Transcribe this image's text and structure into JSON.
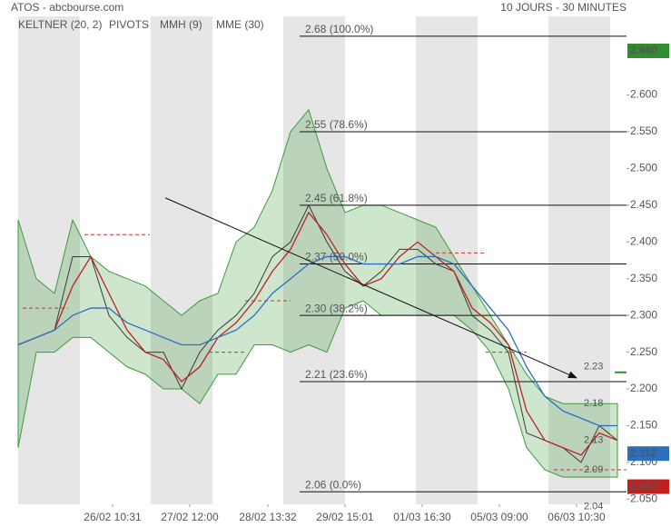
{
  "chart_data": {
    "type": "line",
    "title": "ATOS - abcbourse.com",
    "subtitle": "10 JOURS - 30 MINUTES",
    "x": [
      0,
      1,
      2,
      3,
      4,
      5,
      6,
      7,
      8,
      9,
      10,
      11,
      12,
      13,
      14,
      15,
      16,
      17,
      18,
      19,
      20,
      21,
      22,
      23,
      24,
      25,
      26,
      27,
      28,
      29,
      30,
      31,
      32,
      33
    ],
    "xlim": [
      -0.25,
      33.5
    ],
    "xticks": [
      {
        "value": 5.2,
        "label": "26/02 10:31"
      },
      {
        "value": 9.45,
        "label": "27/02 12:00"
      },
      {
        "value": 13.75,
        "label": "28/02 13:32"
      },
      {
        "value": 18,
        "label": "29/02 15:01"
      },
      {
        "value": 22.25,
        "label": "01/03 16:30"
      },
      {
        "value": 26.5,
        "label": "05/03 09:00"
      },
      {
        "value": 30.75,
        "label": "06/03 10:30"
      }
    ],
    "ylim": [
      2.043,
      2.707
    ],
    "yticks": [
      {
        "value": 2.05,
        "label": "2.050"
      },
      {
        "value": 2.1,
        "label": "2.100"
      },
      {
        "value": 2.15,
        "label": "2.150"
      },
      {
        "value": 2.2,
        "label": "2.200"
      },
      {
        "value": 2.25,
        "label": "2.250"
      },
      {
        "value": 2.3,
        "label": "2.300"
      },
      {
        "value": 2.35,
        "label": "2.350"
      },
      {
        "value": 2.4,
        "label": "2.400"
      },
      {
        "value": 2.45,
        "label": "2.450"
      },
      {
        "value": 2.5,
        "label": "2.500"
      },
      {
        "value": 2.55,
        "label": "2.550"
      },
      {
        "value": 2.6,
        "label": "2.600"
      }
    ],
    "close": {
      "color": "#3a3a3a",
      "values": [
        2.26,
        2.27,
        2.28,
        2.38,
        2.38,
        2.3,
        2.27,
        2.25,
        2.25,
        2.2,
        2.25,
        2.28,
        2.3,
        2.33,
        2.38,
        2.4,
        2.45,
        2.4,
        2.36,
        2.34,
        2.36,
        2.39,
        2.39,
        2.37,
        2.36,
        2.3,
        2.28,
        2.25,
        2.14,
        2.13,
        2.12,
        2.1,
        2.15,
        2.13
      ]
    },
    "keltner": {
      "name": "KELTNER (20, 2)",
      "color": "#3c9a3c",
      "upper": [
        2.43,
        2.35,
        2.33,
        2.43,
        2.38,
        2.36,
        2.35,
        2.34,
        2.32,
        2.3,
        2.32,
        2.33,
        2.4,
        2.42,
        2.47,
        2.55,
        2.58,
        2.5,
        2.44,
        2.45,
        2.45,
        2.44,
        2.43,
        2.42,
        2.38,
        2.34,
        2.3,
        2.26,
        2.22,
        2.19,
        2.18,
        2.18,
        2.18,
        2.18
      ],
      "lower": [
        2.12,
        2.25,
        2.25,
        2.27,
        2.27,
        2.25,
        2.23,
        2.22,
        2.2,
        2.2,
        2.18,
        2.22,
        2.22,
        2.26,
        2.26,
        2.25,
        2.26,
        2.25,
        2.31,
        2.32,
        2.3,
        2.3,
        2.3,
        2.3,
        2.3,
        2.28,
        2.25,
        2.2,
        2.12,
        2.09,
        2.08,
        2.08,
        2.08,
        2.08
      ]
    },
    "pivots": {
      "name": "PIVOTS",
      "color": "#333333",
      "line_color": "#d03030",
      "levels": [
        {
          "x": [
            0.25,
            2.75
          ],
          "value": 2.31
        },
        {
          "x": [
            3.65,
            7.25
          ],
          "value": 2.41
        },
        {
          "x": [
            10.5,
            12.5
          ],
          "value": 2.25
        },
        {
          "x": [
            12.5,
            15
          ],
          "value": 2.32
        },
        {
          "x": [
            18,
            20
          ],
          "value": 2.3
        },
        {
          "x": [
            23,
            25.75
          ],
          "value": 2.385
        },
        {
          "x": [
            25.75,
            28
          ],
          "value": 2.25
        },
        {
          "x": [
            29.5,
            33.5
          ],
          "value": 2.09
        }
      ]
    },
    "series": [
      {
        "name": "MMH (9)",
        "color": "#c02020",
        "values": [
          2.26,
          2.27,
          2.28,
          2.34,
          2.38,
          2.33,
          2.28,
          2.25,
          2.24,
          2.21,
          2.23,
          2.27,
          2.29,
          2.32,
          2.36,
          2.39,
          2.44,
          2.41,
          2.37,
          2.34,
          2.35,
          2.38,
          2.4,
          2.38,
          2.36,
          2.31,
          2.29,
          2.26,
          2.17,
          2.13,
          2.12,
          2.11,
          2.14,
          2.13
        ]
      },
      {
        "name": "MME (30)",
        "color": "#2a6fc0",
        "values": [
          2.26,
          2.27,
          2.28,
          2.3,
          2.31,
          2.31,
          2.29,
          2.28,
          2.27,
          2.26,
          2.26,
          2.27,
          2.28,
          2.3,
          2.33,
          2.35,
          2.37,
          2.38,
          2.38,
          2.37,
          2.37,
          2.37,
          2.38,
          2.38,
          2.37,
          2.34,
          2.31,
          2.28,
          2.23,
          2.19,
          2.17,
          2.16,
          2.15,
          2.15
        ]
      }
    ],
    "fibonacci": [
      {
        "value": 2.68,
        "label": "2.68  (100.0%)"
      },
      {
        "value": 2.55,
        "label": "2.55  (78.6%)"
      },
      {
        "value": 2.45,
        "label": "2.45  (61.8%)"
      },
      {
        "value": 2.37,
        "label": "2.37  (50.0%)"
      },
      {
        "value": 2.3,
        "label": "2.30  (38.2%)"
      },
      {
        "value": 2.21,
        "label": "2.21  (23.6%)"
      },
      {
        "value": 2.06,
        "label": "2.06  (0.0%)"
      }
    ],
    "trendline": {
      "x": [
        8.1,
        30.75
      ],
      "values": [
        2.46,
        2.215
      ]
    },
    "annotations": [
      {
        "value": 2.23,
        "label": "2.23",
        "color": "#2f8f2f"
      },
      {
        "value": 2.18,
        "label": "2.18",
        "color": "#2f8f2f"
      },
      {
        "value": 2.13,
        "label": "2.13",
        "color": "#333333"
      },
      {
        "value": 2.09,
        "label": "2.09",
        "color": "#d03030"
      },
      {
        "value": 2.04,
        "label": "2.04",
        "color": "#d03030"
      }
    ],
    "price_tags": [
      {
        "value": 2.66,
        "label": "2.660",
        "color": "#2f8f2f"
      },
      {
        "value": 2.112,
        "label": "2.112",
        "color": "#2a6fc0"
      },
      {
        "value": 2.067,
        "label": "2.067",
        "color": "#c02020"
      }
    ]
  }
}
